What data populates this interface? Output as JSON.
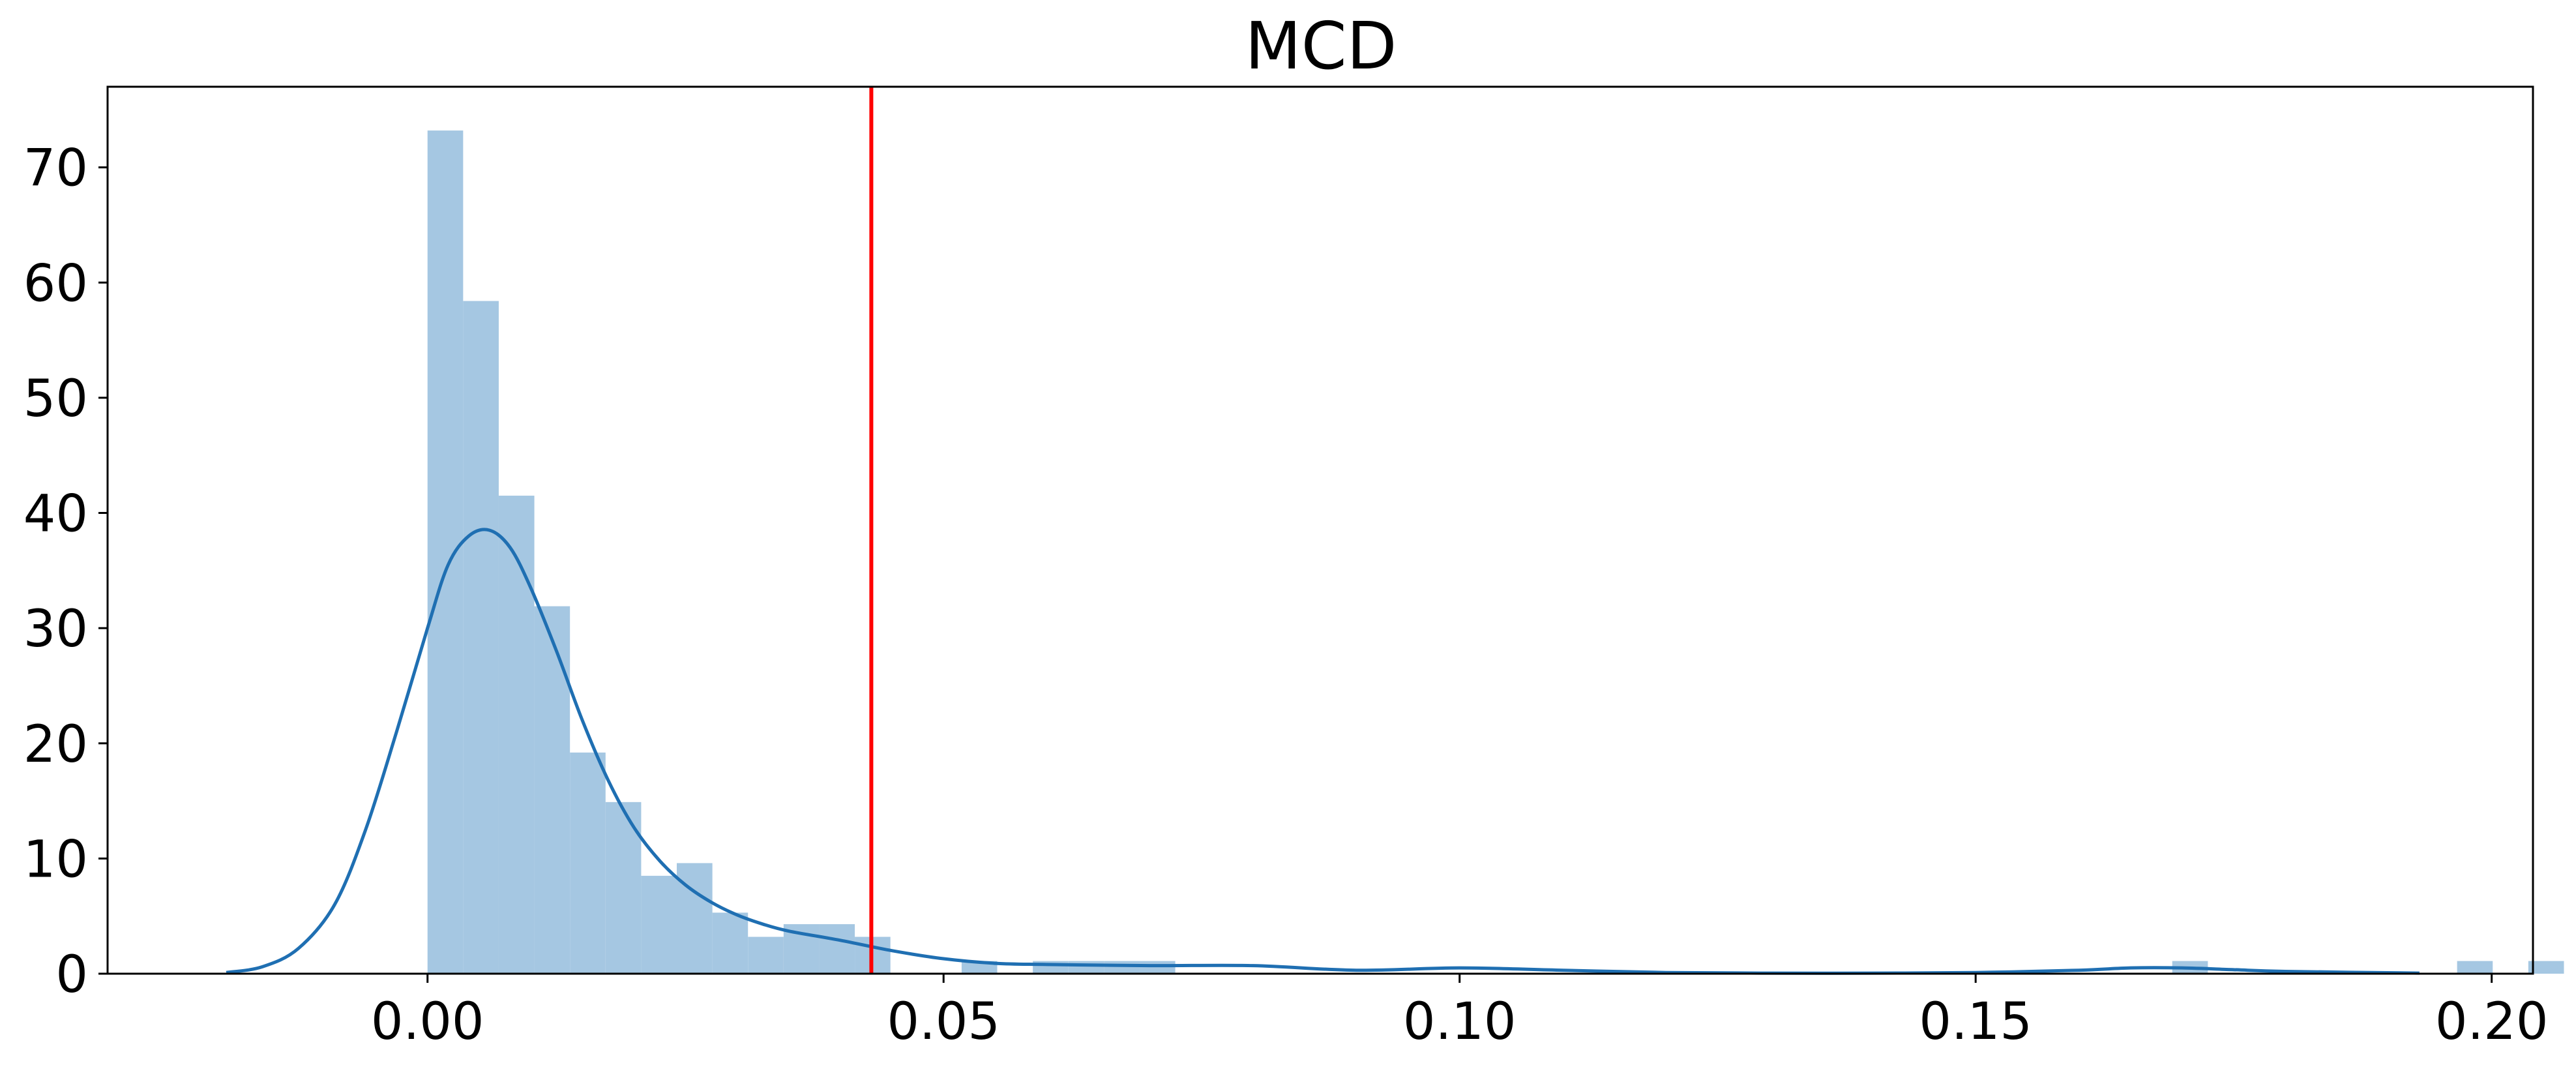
{
  "chart_data": {
    "type": "bar",
    "title": "MCD",
    "xlabel": "",
    "ylabel": "",
    "xlim": [
      -0.031,
      0.204
    ],
    "ylim": [
      0,
      77
    ],
    "grid": false,
    "legend": "none",
    "x_ticks": [
      {
        "value": 0.0,
        "label": "0.00"
      },
      {
        "value": 0.05,
        "label": "0.05"
      },
      {
        "value": 0.1,
        "label": "0.10"
      },
      {
        "value": 0.15,
        "label": "0.15"
      },
      {
        "value": 0.2,
        "label": "0.20"
      }
    ],
    "y_ticks": [
      {
        "value": 0,
        "label": "0"
      },
      {
        "value": 10,
        "label": "10"
      },
      {
        "value": 20,
        "label": "20"
      },
      {
        "value": 30,
        "label": "30"
      },
      {
        "value": 40,
        "label": "40"
      },
      {
        "value": 50,
        "label": "50"
      },
      {
        "value": 60,
        "label": "60"
      },
      {
        "value": 70,
        "label": "70"
      }
    ],
    "histogram": {
      "bin_width": 0.00345,
      "bin_start": 0.0,
      "values": [
        73.2,
        58.4,
        41.5,
        31.9,
        19.2,
        14.9,
        8.5,
        9.6,
        5.3,
        3.2,
        4.3,
        4.3,
        3.2,
        0,
        0,
        1.1,
        0,
        1.1,
        1.1,
        1.1,
        1.1,
        0,
        0,
        0,
        0,
        0,
        0,
        0,
        0,
        0,
        0,
        0,
        0,
        0,
        0,
        0,
        0,
        0,
        0,
        0,
        0,
        0,
        0,
        0,
        0,
        0,
        0,
        0,
        0,
        1.1,
        0,
        0,
        0,
        0,
        0,
        0,
        0,
        1.1,
        0,
        1.1,
        0,
        1.1,
        0,
        0
      ]
    },
    "kde": {
      "x": [
        -0.0195,
        -0.016,
        -0.0125,
        -0.009,
        -0.006,
        -0.003,
        0.0,
        0.002,
        0.004,
        0.006,
        0.008,
        0.01,
        0.0125,
        0.015,
        0.0175,
        0.02,
        0.0225,
        0.025,
        0.0275,
        0.03,
        0.0325,
        0.035,
        0.04,
        0.045,
        0.05,
        0.055,
        0.06,
        0.07,
        0.08,
        0.09,
        0.1,
        0.11,
        0.12,
        0.13,
        0.14,
        0.15,
        0.16,
        0.165,
        0.17,
        0.175,
        0.18,
        0.193
      ],
      "y": [
        0.1,
        0.6,
        2.2,
        6.0,
        12.5,
        21.0,
        30.0,
        35.5,
        38.0,
        38.5,
        37.0,
        33.5,
        28.0,
        22.0,
        16.8,
        12.7,
        9.8,
        7.7,
        6.2,
        5.1,
        4.3,
        3.7,
        2.9,
        2.0,
        1.3,
        0.9,
        0.8,
        0.7,
        0.7,
        0.3,
        0.5,
        0.3,
        0.1,
        0.05,
        0.05,
        0.1,
        0.3,
        0.5,
        0.5,
        0.35,
        0.2,
        0.05
      ]
    },
    "vline": {
      "x": 0.043,
      "color": "#ff0000"
    },
    "colors": {
      "bars": "#a5c7e2",
      "kde": "#1f6fb2",
      "vline": "#ff0000",
      "axes": "#000000"
    }
  }
}
